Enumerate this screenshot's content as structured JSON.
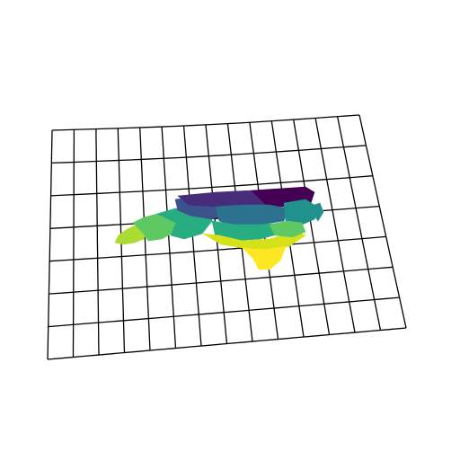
{
  "map": {
    "projection": "oblique",
    "grid": {
      "columns": 14,
      "rows": 7,
      "line_color": "#000000"
    },
    "colormap": {
      "name": "viridis",
      "stops": [
        "#440154",
        "#46327e",
        "#365c8d",
        "#277f8e",
        "#1fa187",
        "#4ac16d",
        "#a0da39",
        "#fde725"
      ]
    },
    "region_colors": {
      "northeast": "#440154",
      "north_central": "#472c7a",
      "north_west": "#3b528b",
      "central": "#2c728e",
      "coastal_central": "#21918c",
      "piedmont": "#27ad81",
      "mountains": "#5ec962",
      "far_west": "#aadc32",
      "southern": "#d5e21a",
      "south_tip": "#fde725"
    }
  }
}
